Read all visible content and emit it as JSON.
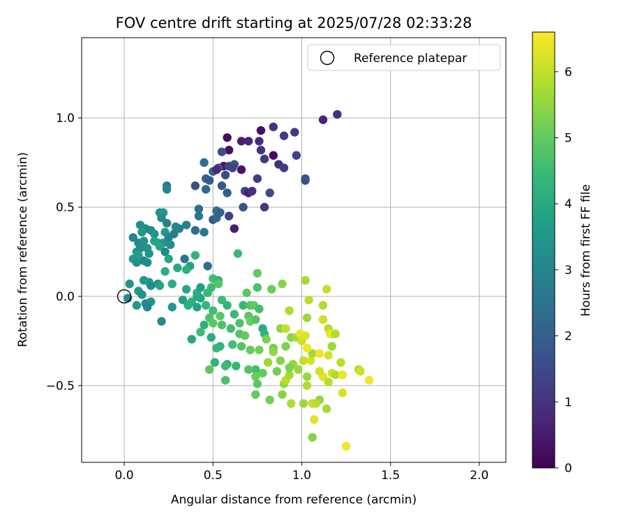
{
  "chart_data": {
    "type": "scatter",
    "title": "FOV centre drift starting at 2025/07/28 02:33:28",
    "xlabel": "Angular distance from reference (arcmin)",
    "ylabel": "Rotation from reference (arcmin)",
    "xlim": [
      -0.24,
      2.15
    ],
    "ylim": [
      -0.93,
      1.45
    ],
    "xticks": [
      "0.0",
      "0.5",
      "1.0",
      "1.5",
      "2.0"
    ],
    "yticks": [
      "−0.5",
      "0.0",
      "0.5",
      "1.0"
    ],
    "grid": true,
    "legend_position": "top-right",
    "legend": [
      "Reference platepar"
    ],
    "reference_point": {
      "x": 0.0,
      "y": 0.0
    },
    "colorbar": {
      "label": "Hours from first FF file",
      "range": [
        0,
        6.6
      ],
      "ticks": [
        "0",
        "1",
        "2",
        "3",
        "4",
        "5",
        "6"
      ],
      "colormap": "viridis",
      "colors": [
        "#440154",
        "#482878",
        "#3e4989",
        "#31688e",
        "#26828e",
        "#1f9e89",
        "#35b779",
        "#6ece58",
        "#b5de2b",
        "#fde725"
      ]
    },
    "points": [
      {
        "x": 0.58,
        "y": 0.89,
        "c": 0.2
      },
      {
        "x": 0.59,
        "y": 0.82,
        "c": 0.3
      },
      {
        "x": 0.56,
        "y": 0.73,
        "c": 0.4
      },
      {
        "x": 0.66,
        "y": 0.87,
        "c": 0.6
      },
      {
        "x": 0.7,
        "y": 0.87,
        "c": 0.7
      },
      {
        "x": 0.76,
        "y": 0.87,
        "c": 0.8
      },
      {
        "x": 0.77,
        "y": 0.93,
        "c": 0.3
      },
      {
        "x": 0.84,
        "y": 0.95,
        "c": 1.0
      },
      {
        "x": 0.9,
        "y": 0.9,
        "c": 1.2
      },
      {
        "x": 0.96,
        "y": 0.92,
        "c": 1.1
      },
      {
        "x": 1.12,
        "y": 0.99,
        "c": 0.7
      },
      {
        "x": 1.2,
        "y": 1.02,
        "c": 0.9
      },
      {
        "x": 0.77,
        "y": 0.82,
        "c": 1.0
      },
      {
        "x": 0.79,
        "y": 0.77,
        "c": 1.1
      },
      {
        "x": 0.84,
        "y": 0.79,
        "c": 0.2
      },
      {
        "x": 0.87,
        "y": 0.74,
        "c": 0.9
      },
      {
        "x": 0.9,
        "y": 0.72,
        "c": 1.2
      },
      {
        "x": 0.97,
        "y": 0.79,
        "c": 1.3
      },
      {
        "x": 1.02,
        "y": 0.65,
        "c": 1.5
      },
      {
        "x": 0.55,
        "y": 0.81,
        "c": 1.6
      },
      {
        "x": 0.59,
        "y": 0.73,
        "c": 1.4
      },
      {
        "x": 0.62,
        "y": 0.74,
        "c": 1.7
      },
      {
        "x": 0.66,
        "y": 0.71,
        "c": 0.4
      },
      {
        "x": 0.53,
        "y": 0.72,
        "c": 1.8
      },
      {
        "x": 0.5,
        "y": 0.7,
        "c": 2.0
      },
      {
        "x": 0.52,
        "y": 0.71,
        "c": 0.8
      },
      {
        "x": 0.57,
        "y": 0.68,
        "c": 1.5
      },
      {
        "x": 0.61,
        "y": 0.72,
        "c": 1.3
      },
      {
        "x": 0.46,
        "y": 0.66,
        "c": 2.1
      },
      {
        "x": 0.48,
        "y": 0.65,
        "c": 1.9
      },
      {
        "x": 0.45,
        "y": 0.75,
        "c": 2.3
      },
      {
        "x": 0.4,
        "y": 0.62,
        "c": 1.6
      },
      {
        "x": 0.46,
        "y": 0.6,
        "c": 2.2
      },
      {
        "x": 0.55,
        "y": 0.62,
        "c": 1.8
      },
      {
        "x": 0.68,
        "y": 0.59,
        "c": 1.4
      },
      {
        "x": 0.7,
        "y": 0.58,
        "c": 0.6
      },
      {
        "x": 0.72,
        "y": 0.59,
        "c": 0.9
      },
      {
        "x": 0.75,
        "y": 0.66,
        "c": 1.2
      },
      {
        "x": 0.82,
        "y": 0.58,
        "c": 1.5
      },
      {
        "x": 0.58,
        "y": 0.58,
        "c": 2.0
      },
      {
        "x": 0.67,
        "y": 0.5,
        "c": 1.7
      },
      {
        "x": 0.79,
        "y": 0.5,
        "c": 1.1
      },
      {
        "x": 1.02,
        "y": 0.66,
        "c": 1.7
      },
      {
        "x": 0.42,
        "y": 0.49,
        "c": 2.4
      },
      {
        "x": 0.42,
        "y": 0.45,
        "c": 2.6
      },
      {
        "x": 0.52,
        "y": 0.48,
        "c": 2.5
      },
      {
        "x": 0.54,
        "y": 0.47,
        "c": 2.0
      },
      {
        "x": 0.5,
        "y": 0.43,
        "c": 1.8
      },
      {
        "x": 0.52,
        "y": 0.44,
        "c": 2.2
      },
      {
        "x": 0.59,
        "y": 0.45,
        "c": 1.3
      },
      {
        "x": 0.62,
        "y": 0.38,
        "c": 0.5
      },
      {
        "x": 0.4,
        "y": 0.37,
        "c": 2.3
      },
      {
        "x": 0.45,
        "y": 0.36,
        "c": 2.7
      },
      {
        "x": 0.35,
        "y": 0.4,
        "c": 2.9
      },
      {
        "x": 0.31,
        "y": 0.38,
        "c": 2.8
      },
      {
        "x": 0.29,
        "y": 0.39,
        "c": 3.1
      },
      {
        "x": 0.24,
        "y": 0.41,
        "c": 2.9
      },
      {
        "x": 0.24,
        "y": 0.62,
        "c": 2.7
      },
      {
        "x": 0.24,
        "y": 0.6,
        "c": 3.0
      },
      {
        "x": 0.2,
        "y": 0.47,
        "c": 3.3
      },
      {
        "x": 0.22,
        "y": 0.47,
        "c": 3.4
      },
      {
        "x": 0.21,
        "y": 0.44,
        "c": 3.2
      },
      {
        "x": 0.09,
        "y": 0.4,
        "c": 3.3
      },
      {
        "x": 0.12,
        "y": 0.38,
        "c": 3.2
      },
      {
        "x": 0.1,
        "y": 0.36,
        "c": 3.5
      },
      {
        "x": 0.15,
        "y": 0.37,
        "c": 3.1
      },
      {
        "x": 0.17,
        "y": 0.35,
        "c": 3.4
      },
      {
        "x": 0.23,
        "y": 0.36,
        "c": 3.6
      },
      {
        "x": 0.25,
        "y": 0.33,
        "c": 3.0
      },
      {
        "x": 0.28,
        "y": 0.35,
        "c": 2.8
      },
      {
        "x": 0.19,
        "y": 0.3,
        "c": 3.7
      },
      {
        "x": 0.22,
        "y": 0.3,
        "c": 3.5
      },
      {
        "x": 0.26,
        "y": 0.29,
        "c": 3.2
      },
      {
        "x": 0.05,
        "y": 0.33,
        "c": 2.9
      },
      {
        "x": 0.08,
        "y": 0.3,
        "c": 3.1
      },
      {
        "x": 0.11,
        "y": 0.31,
        "c": 3.3
      },
      {
        "x": 0.17,
        "y": 0.31,
        "c": 3.8
      },
      {
        "x": 0.13,
        "y": 0.27,
        "c": 3.4
      },
      {
        "x": 0.07,
        "y": 0.25,
        "c": 3.6
      },
      {
        "x": 0.09,
        "y": 0.27,
        "c": 3.2
      },
      {
        "x": 0.2,
        "y": 0.28,
        "c": 3.9
      },
      {
        "x": 0.23,
        "y": 0.25,
        "c": 3.1
      },
      {
        "x": 0.05,
        "y": 0.21,
        "c": 3.5
      },
      {
        "x": 0.07,
        "y": 0.19,
        "c": 3.3
      },
      {
        "x": 0.11,
        "y": 0.2,
        "c": 3.0
      },
      {
        "x": 0.13,
        "y": 0.19,
        "c": 3.2
      },
      {
        "x": 0.08,
        "y": 0.23,
        "c": 3.7
      },
      {
        "x": 0.14,
        "y": 0.24,
        "c": 3.4
      },
      {
        "x": 0.25,
        "y": 0.21,
        "c": 3.9
      },
      {
        "x": 0.3,
        "y": 0.16,
        "c": 4.0
      },
      {
        "x": 0.23,
        "y": 0.14,
        "c": 4.1
      },
      {
        "x": 0.34,
        "y": 0.21,
        "c": 2.6
      },
      {
        "x": 0.37,
        "y": 0.17,
        "c": 3.8
      },
      {
        "x": 0.35,
        "y": 0.15,
        "c": 4.2
      },
      {
        "x": 0.4,
        "y": 0.23,
        "c": 4.3
      },
      {
        "x": 0.47,
        "y": 0.17,
        "c": 2.4
      },
      {
        "x": 0.03,
        "y": 0.07,
        "c": 3.4
      },
      {
        "x": 0.11,
        "y": 0.09,
        "c": 3.5
      },
      {
        "x": 0.14,
        "y": 0.08,
        "c": 3.6
      },
      {
        "x": 0.19,
        "y": 0.07,
        "c": 3.3
      },
      {
        "x": 0.2,
        "y": 0.06,
        "c": 3.8
      },
      {
        "x": 0.27,
        "y": 0.07,
        "c": 4.1
      },
      {
        "x": 0.15,
        "y": 0.06,
        "c": 3.2
      },
      {
        "x": 0.08,
        "y": 0.03,
        "c": 3.6
      },
      {
        "x": 0.1,
        "y": 0.01,
        "c": 3.3
      },
      {
        "x": 0.02,
        "y": -0.01,
        "c": 3.1
      },
      {
        "x": 0.15,
        "y": -0.03,
        "c": 3.4
      },
      {
        "x": 0.12,
        "y": -0.04,
        "c": 3.2
      },
      {
        "x": 0.07,
        "y": -0.05,
        "c": 3.5
      },
      {
        "x": 0.13,
        "y": -0.06,
        "c": 3.0
      },
      {
        "x": 0.21,
        "y": -0.14,
        "c": 3.1
      },
      {
        "x": 0.35,
        "y": 0.04,
        "c": 3.9
      },
      {
        "x": 0.41,
        "y": 0.02,
        "c": 4.2
      },
      {
        "x": 0.43,
        "y": 0.05,
        "c": 3.7
      },
      {
        "x": 0.47,
        "y": 0.02,
        "c": 4.4
      },
      {
        "x": 0.5,
        "y": 0.1,
        "c": 4.6
      },
      {
        "x": 0.53,
        "y": 0.09,
        "c": 4.3
      },
      {
        "x": 0.53,
        "y": 0.07,
        "c": 4.8
      },
      {
        "x": 0.49,
        "y": 0.05,
        "c": 4.5
      },
      {
        "x": 0.43,
        "y": -0.01,
        "c": 3.9
      },
      {
        "x": 0.41,
        "y": 0.0,
        "c": 4.0
      },
      {
        "x": 0.38,
        "y": -0.03,
        "c": 4.2
      },
      {
        "x": 0.33,
        "y": -0.02,
        "c": 3.7
      },
      {
        "x": 0.27,
        "y": -0.06,
        "c": 3.5
      },
      {
        "x": 0.36,
        "y": -0.05,
        "c": 4.1
      },
      {
        "x": 0.41,
        "y": -0.06,
        "c": 3.8
      },
      {
        "x": 0.46,
        "y": -0.05,
        "c": 4.4
      },
      {
        "x": 0.55,
        "y": -0.02,
        "c": 4.5
      },
      {
        "x": 0.58,
        "y": -0.05,
        "c": 4.3
      },
      {
        "x": 0.5,
        "y": -0.08,
        "c": 4.6
      },
      {
        "x": 0.54,
        "y": -0.11,
        "c": 4.9
      },
      {
        "x": 0.48,
        "y": -0.12,
        "c": 4.7
      },
      {
        "x": 0.64,
        "y": 0.24,
        "c": 4.5
      },
      {
        "x": 0.69,
        "y": 0.02,
        "c": 4.9
      },
      {
        "x": 0.75,
        "y": 0.13,
        "c": 5.0
      },
      {
        "x": 0.75,
        "y": 0.05,
        "c": 4.7
      },
      {
        "x": 0.83,
        "y": 0.04,
        "c": 5.1
      },
      {
        "x": 0.89,
        "y": 0.07,
        "c": 5.4
      },
      {
        "x": 0.67,
        "y": -0.05,
        "c": 4.4
      },
      {
        "x": 0.71,
        "y": -0.05,
        "c": 4.8
      },
      {
        "x": 0.73,
        "y": -0.05,
        "c": 5.0
      },
      {
        "x": 0.76,
        "y": -0.07,
        "c": 4.6
      },
      {
        "x": 0.62,
        "y": -0.1,
        "c": 4.5
      },
      {
        "x": 0.65,
        "y": -0.15,
        "c": 4.7
      },
      {
        "x": 0.7,
        "y": -0.11,
        "c": 4.9
      },
      {
        "x": 0.71,
        "y": -0.14,
        "c": 5.1
      },
      {
        "x": 0.74,
        "y": -0.13,
        "c": 4.8
      },
      {
        "x": 0.78,
        "y": -0.18,
        "c": 4.0
      },
      {
        "x": 0.79,
        "y": -0.21,
        "c": 4.3
      },
      {
        "x": 0.6,
        "y": -0.18,
        "c": 4.6
      },
      {
        "x": 0.65,
        "y": -0.21,
        "c": 4.8
      },
      {
        "x": 0.68,
        "y": -0.22,
        "c": 5.0
      },
      {
        "x": 0.55,
        "y": -0.16,
        "c": 4.7
      },
      {
        "x": 0.5,
        "y": -0.15,
        "c": 4.9
      },
      {
        "x": 0.45,
        "y": -0.16,
        "c": 4.2
      },
      {
        "x": 0.43,
        "y": -0.2,
        "c": 4.5
      },
      {
        "x": 0.38,
        "y": -0.24,
        "c": 3.9
      },
      {
        "x": 0.49,
        "y": -0.23,
        "c": 4.1
      },
      {
        "x": 0.52,
        "y": -0.29,
        "c": 4.4
      },
      {
        "x": 0.54,
        "y": -0.28,
        "c": 4.3
      },
      {
        "x": 0.61,
        "y": -0.27,
        "c": 4.6
      },
      {
        "x": 0.66,
        "y": -0.28,
        "c": 4.8
      },
      {
        "x": 0.71,
        "y": -0.3,
        "c": 5.0
      },
      {
        "x": 0.76,
        "y": -0.3,
        "c": 5.2
      },
      {
        "x": 0.8,
        "y": -0.24,
        "c": 5.3
      },
      {
        "x": 0.84,
        "y": -0.29,
        "c": 5.1
      },
      {
        "x": 0.81,
        "y": -0.37,
        "c": 5.6
      },
      {
        "x": 0.88,
        "y": -0.36,
        "c": 5.4
      },
      {
        "x": 0.95,
        "y": -0.38,
        "c": 5.5
      },
      {
        "x": 0.91,
        "y": -0.28,
        "c": 5.3
      },
      {
        "x": 0.84,
        "y": -0.31,
        "c": 5.5
      },
      {
        "x": 0.86,
        "y": -0.42,
        "c": 5.2
      },
      {
        "x": 0.78,
        "y": -0.43,
        "c": 5.0
      },
      {
        "x": 0.74,
        "y": -0.41,
        "c": 4.6
      },
      {
        "x": 0.7,
        "y": -0.41,
        "c": 4.8
      },
      {
        "x": 0.63,
        "y": -0.39,
        "c": 4.4
      },
      {
        "x": 0.58,
        "y": -0.38,
        "c": 4.2
      },
      {
        "x": 0.57,
        "y": -0.39,
        "c": 4.5
      },
      {
        "x": 0.51,
        "y": -0.37,
        "c": 4.3
      },
      {
        "x": 0.48,
        "y": -0.41,
        "c": 4.9
      },
      {
        "x": 0.74,
        "y": -0.45,
        "c": 5.1
      },
      {
        "x": 0.75,
        "y": -0.49,
        "c": 4.9
      },
      {
        "x": 0.74,
        "y": -0.55,
        "c": 5.0
      },
      {
        "x": 0.57,
        "y": -0.47,
        "c": 4.7
      },
      {
        "x": 0.82,
        "y": -0.58,
        "c": 5.2
      },
      {
        "x": 0.89,
        "y": -0.55,
        "c": 5.4
      },
      {
        "x": 0.94,
        "y": -0.6,
        "c": 5.8
      },
      {
        "x": 1.01,
        "y": -0.6,
        "c": 5.6
      },
      {
        "x": 1.06,
        "y": -0.6,
        "c": 6.0
      },
      {
        "x": 1.1,
        "y": -0.58,
        "c": 5.5
      },
      {
        "x": 1.14,
        "y": -0.63,
        "c": 5.7
      },
      {
        "x": 1.06,
        "y": -0.79,
        "c": 5.4
      },
      {
        "x": 1.07,
        "y": -0.69,
        "c": 6.3
      },
      {
        "x": 1.25,
        "y": -0.84,
        "c": 6.5
      },
      {
        "x": 0.9,
        "y": -0.49,
        "c": 5.5
      },
      {
        "x": 0.91,
        "y": -0.47,
        "c": 5.9
      },
      {
        "x": 0.93,
        "y": -0.44,
        "c": 5.7
      },
      {
        "x": 0.93,
        "y": -0.4,
        "c": 5.3
      },
      {
        "x": 0.98,
        "y": -0.41,
        "c": 5.6
      },
      {
        "x": 1.03,
        "y": -0.5,
        "c": 5.8
      },
      {
        "x": 1.03,
        "y": -0.45,
        "c": 5.6
      },
      {
        "x": 1.01,
        "y": -0.36,
        "c": 6.0
      },
      {
        "x": 1.05,
        "y": -0.36,
        "c": 6.2
      },
      {
        "x": 1.06,
        "y": -0.32,
        "c": 5.7
      },
      {
        "x": 1.1,
        "y": -0.32,
        "c": 6.4
      },
      {
        "x": 1.12,
        "y": -0.45,
        "c": 6.3
      },
      {
        "x": 1.1,
        "y": -0.42,
        "c": 6.1
      },
      {
        "x": 1.15,
        "y": -0.48,
        "c": 5.9
      },
      {
        "x": 1.17,
        "y": -0.43,
        "c": 6.2
      },
      {
        "x": 1.19,
        "y": -0.44,
        "c": 5.8
      },
      {
        "x": 1.23,
        "y": -0.44,
        "c": 6.4
      },
      {
        "x": 1.22,
        "y": -0.37,
        "c": 5.9
      },
      {
        "x": 1.17,
        "y": -0.28,
        "c": 5.6
      },
      {
        "x": 1.32,
        "y": -0.41,
        "c": 5.8
      },
      {
        "x": 1.33,
        "y": -0.42,
        "c": 6.1
      },
      {
        "x": 1.38,
        "y": -0.47,
        "c": 6.5
      },
      {
        "x": 1.23,
        "y": -0.54,
        "c": 6.2
      },
      {
        "x": 1.08,
        "y": -0.6,
        "c": 5.9
      },
      {
        "x": 0.88,
        "y": -0.18,
        "c": 5.5
      },
      {
        "x": 0.91,
        "y": -0.18,
        "c": 6.0
      },
      {
        "x": 0.93,
        "y": -0.08,
        "c": 5.8
      },
      {
        "x": 0.94,
        "y": -0.23,
        "c": 5.4
      },
      {
        "x": 0.97,
        "y": -0.23,
        "c": 5.7
      },
      {
        "x": 0.99,
        "y": -0.21,
        "c": 6.4
      },
      {
        "x": 1.0,
        "y": -0.25,
        "c": 6.1
      },
      {
        "x": 1.02,
        "y": -0.22,
        "c": 6.3
      },
      {
        "x": 1.03,
        "y": -0.29,
        "c": 6.5
      },
      {
        "x": 1.03,
        "y": -0.12,
        "c": 5.6
      },
      {
        "x": 1.04,
        "y": -0.02,
        "c": 5.9
      },
      {
        "x": 1.02,
        "y": 0.09,
        "c": 5.7
      },
      {
        "x": 1.14,
        "y": 0.04,
        "c": 6.0
      },
      {
        "x": 1.12,
        "y": -0.05,
        "c": 5.8
      },
      {
        "x": 1.12,
        "y": -0.13,
        "c": 6.1
      },
      {
        "x": 1.15,
        "y": -0.18,
        "c": 5.9
      },
      {
        "x": 1.17,
        "y": -0.21,
        "c": 5.7
      },
      {
        "x": 1.16,
        "y": -0.21,
        "c": 6.4
      },
      {
        "x": 1.19,
        "y": -0.21,
        "c": 5.8
      },
      {
        "x": 1.15,
        "y": -0.33,
        "c": 6.2
      }
    ]
  }
}
